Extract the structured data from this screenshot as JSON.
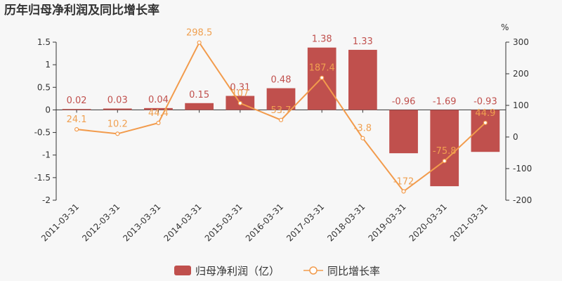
{
  "title": "历年归母净利润及同比增长率",
  "right_unit": "%",
  "legend": {
    "bar": "归母净利润（亿）",
    "line": "同比增长率"
  },
  "colors": {
    "bar": "#c0504d",
    "line": "#f29b4c",
    "axis": "#333333"
  },
  "chart_data": {
    "type": "bar",
    "categories": [
      "2011-03-31",
      "2012-03-31",
      "2013-03-31",
      "2014-03-31",
      "2015-03-31",
      "2016-03-31",
      "2017-03-31",
      "2018-03-31",
      "2019-03-31",
      "2020-03-31",
      "2021-03-31"
    ],
    "series": [
      {
        "name": "归母净利润（亿）",
        "type": "bar",
        "axis": "left",
        "values": [
          0.02,
          0.03,
          0.04,
          0.15,
          0.31,
          0.48,
          1.38,
          1.33,
          -0.96,
          -1.69,
          -0.93
        ],
        "labels": [
          "0.02",
          "0.03",
          "0.04",
          "0.15",
          "0.31",
          "0.48",
          "1.38",
          "1.33",
          "-0.96",
          "-1.69",
          "-0.93"
        ]
      },
      {
        "name": "同比增长率",
        "type": "line",
        "axis": "right",
        "values": [
          24.1,
          10.2,
          44.4,
          298.5,
          107,
          53.7,
          187.4,
          -3.8,
          -172,
          -75.8,
          44.9
        ],
        "labels": [
          "24.1",
          "10.2",
          "44.4",
          "298.5",
          "107",
          "53.7",
          "187.4",
          "-3.8",
          "-172",
          "-75.8",
          "44.9"
        ]
      }
    ],
    "left_axis": {
      "ylim": [
        -2,
        1.5
      ],
      "ticks": [
        "1.5",
        "1",
        "0.5",
        "0",
        "-0.5",
        "-1",
        "-1.5",
        "-2"
      ]
    },
    "right_axis": {
      "ylim": [
        -200,
        300
      ],
      "ticks": [
        "300",
        "200",
        "100",
        "0",
        "-100",
        "-200"
      ]
    },
    "legend_position": "bottom-center",
    "grid": false
  }
}
